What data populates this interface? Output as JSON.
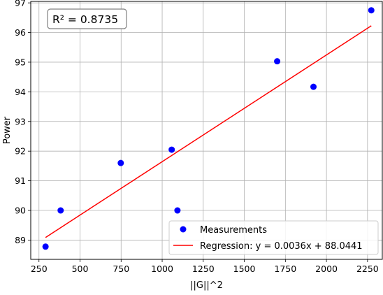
{
  "chart_data": {
    "type": "scatter",
    "title": "",
    "xlabel": "||G||^2",
    "ylabel": "Power",
    "xlim": [
      200,
      2340
    ],
    "ylim": [
      88.35,
      97.05
    ],
    "xticks": [
      250,
      500,
      750,
      1000,
      1250,
      1500,
      1750,
      2000,
      2250
    ],
    "yticks": [
      89,
      90,
      91,
      92,
      93,
      94,
      95,
      96,
      97
    ],
    "grid": true,
    "legend_position": "bottom-right",
    "annotation": "R² = 0.8735",
    "series": [
      {
        "name": "Measurements",
        "kind": "scatter",
        "color": "#0000ff",
        "points": [
          {
            "x": 290,
            "y": 88.78
          },
          {
            "x": 382,
            "y": 90.0
          },
          {
            "x": 748,
            "y": 91.6
          },
          {
            "x": 1058,
            "y": 92.05
          },
          {
            "x": 1093,
            "y": 90.0
          },
          {
            "x": 1700,
            "y": 95.03
          },
          {
            "x": 1921,
            "y": 94.17
          },
          {
            "x": 2273,
            "y": 96.75
          }
        ]
      },
      {
        "name": "Regression: y = 0.0036x + 88.0441",
        "kind": "line",
        "color": "#ff0000",
        "slope": 0.0036,
        "intercept": 88.0441,
        "x_range": [
          290,
          2273
        ]
      }
    ]
  }
}
